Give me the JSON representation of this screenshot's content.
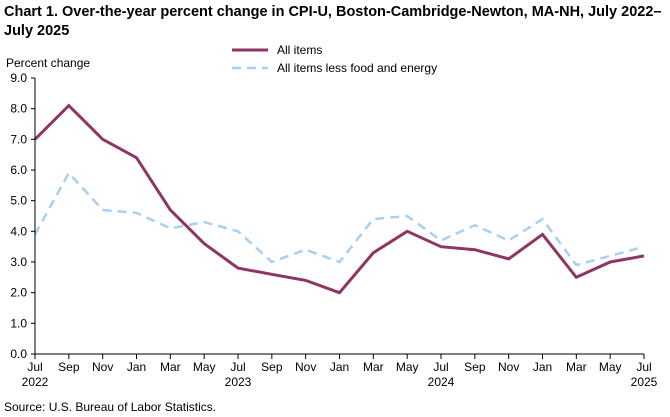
{
  "chart_title": "Chart 1. Over-the-year percent change in CPI-U, Boston-Cambridge-Newton, MA-NH, July 2022–July 2025",
  "source": "Source: U.S. Bureau of Labor Statistics.",
  "chart_data": {
    "type": "line",
    "title": "Chart 1. Over-the-year percent change in CPI-U, Boston-Cambridge-Newton, MA-NH, July 2022–July 2025",
    "ylabel": "Percent change",
    "xlabel": "",
    "ylim": [
      0,
      9
    ],
    "yticks": [
      "0.0",
      "1.0",
      "2.0",
      "3.0",
      "4.0",
      "5.0",
      "6.0",
      "7.0",
      "8.0",
      "9.0"
    ],
    "categories": [
      "Jul",
      "Sep",
      "Nov",
      "Jan",
      "Mar",
      "May",
      "Jul",
      "Sep",
      "Nov",
      "Jan",
      "Mar",
      "May",
      "Jul",
      "Sep",
      "Nov",
      "Jan",
      "Mar",
      "May",
      "Jul"
    ],
    "year_labels": [
      {
        "index": 0,
        "label": "2022"
      },
      {
        "index": 6,
        "label": "2023"
      },
      {
        "index": 12,
        "label": "2024"
      },
      {
        "index": 18,
        "label": "2025"
      }
    ],
    "grid": false,
    "legend_position": "top-center",
    "series": [
      {
        "name": "All items",
        "color": "#8e3563",
        "style": "solid",
        "values": [
          7.0,
          8.1,
          7.0,
          6.4,
          4.7,
          3.6,
          2.8,
          2.6,
          2.4,
          2.0,
          3.3,
          4.0,
          3.5,
          3.4,
          3.1,
          3.9,
          2.5,
          3.0,
          3.2
        ]
      },
      {
        "name": "All items less food and energy",
        "color": "#a9cff2",
        "style": "dashed",
        "values": [
          3.9,
          5.9,
          4.7,
          4.6,
          4.1,
          4.3,
          4.0,
          3.0,
          3.4,
          3.0,
          4.4,
          4.5,
          3.7,
          4.2,
          3.7,
          4.4,
          2.9,
          3.2,
          3.5
        ]
      }
    ]
  }
}
